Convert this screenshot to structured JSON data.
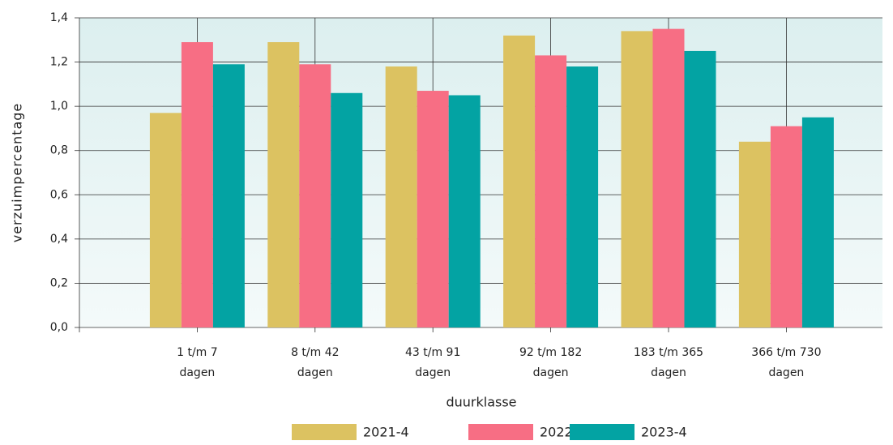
{
  "chart_data": {
    "type": "bar",
    "y_label": "verzuimpercentage",
    "x_label": "duurklasse",
    "categories": [
      [
        "1 t/m 7",
        "dagen"
      ],
      [
        "8 t/m 42",
        "dagen"
      ],
      [
        "43 t/m 91",
        "dagen"
      ],
      [
        "92 t/m 182",
        "dagen"
      ],
      [
        "183 t/m 365",
        "dagen"
      ],
      [
        "366 t/m 730",
        "dagen"
      ]
    ],
    "series": [
      {
        "name": "2021-4",
        "color": "#dcc261",
        "values": [
          0.97,
          1.29,
          1.18,
          1.32,
          1.34,
          0.84
        ]
      },
      {
        "name": "2022-4",
        "color": "#f76e84",
        "values": [
          1.29,
          1.19,
          1.07,
          1.23,
          1.35,
          0.91
        ]
      },
      {
        "name": "2023-4",
        "color": "#03a3a3",
        "values": [
          1.19,
          1.06,
          1.05,
          1.18,
          1.25,
          0.95
        ]
      }
    ],
    "ylim": [
      0,
      1.4
    ],
    "yticks": [
      {
        "value": 0,
        "label": "0,0"
      },
      {
        "value": 0.2,
        "label": "0,2"
      },
      {
        "value": 0.4,
        "label": "0,4"
      },
      {
        "value": 0.6,
        "label": "0,6"
      },
      {
        "value": 0.8,
        "label": "0,8"
      },
      {
        "value": 1.0,
        "label": "1,0"
      },
      {
        "value": 1.2,
        "label": "1,2"
      },
      {
        "value": 1.4,
        "label": "1,4"
      }
    ],
    "grid": true,
    "legend": "bottom"
  }
}
